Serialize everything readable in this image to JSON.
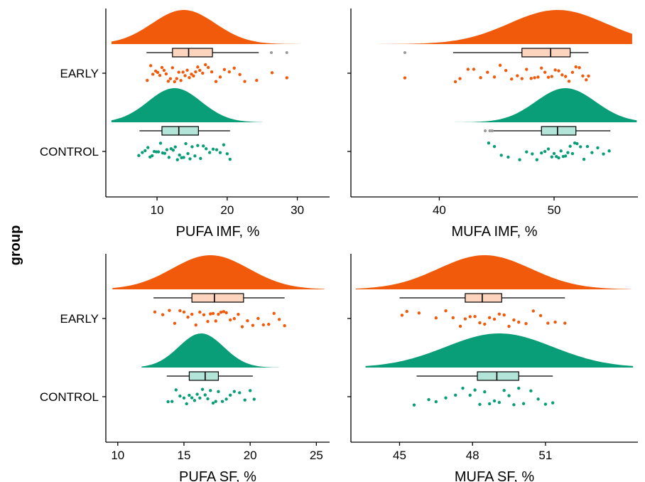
{
  "ylabel": "group",
  "groups": [
    "EARLY",
    "CONTROL"
  ],
  "colors": {
    "EARLY": "#F05A0A",
    "CONTROL": "#0A9E78",
    "EARLY_box": "#FDD5BE",
    "CONTROL_box": "#B2E4D7",
    "outlier": "#999999"
  },
  "chart_data": [
    {
      "type": "raincloud",
      "xlabel": "PUFA IMF, %",
      "xlim": [
        2.7,
        34.6
      ],
      "xticks": [
        10,
        20,
        30
      ],
      "groups": [
        {
          "name": "EARLY",
          "density": {
            "mean": 13.8,
            "sd": 4.5,
            "min": 3.5,
            "max": 33.5
          },
          "box": {
            "whisker_low": 8.5,
            "q1": 12.2,
            "median": 14.5,
            "q3": 17.9,
            "whisker_high": 24.5
          },
          "outliers": [
            26.3,
            28.5
          ],
          "points": [
            8.6,
            9.1,
            9.4,
            9.8,
            10.1,
            10.4,
            10.7,
            11.0,
            11.3,
            11.6,
            11.9,
            12.2,
            12.5,
            12.8,
            13.1,
            13.4,
            13.7,
            14.0,
            14.3,
            14.6,
            14.9,
            15.2,
            15.5,
            15.8,
            16.1,
            16.5,
            16.9,
            17.3,
            17.8,
            18.4,
            19.0,
            19.6,
            20.3,
            21.0,
            21.8,
            22.5,
            24.2,
            26.4,
            28.5
          ]
        },
        {
          "name": "CONTROL",
          "density": {
            "mean": 12.5,
            "sd": 3.8,
            "min": 3.5,
            "max": 25.0
          },
          "box": {
            "whisker_low": 7.5,
            "q1": 10.7,
            "median": 13.1,
            "q3": 15.9,
            "whisker_high": 20.4
          },
          "outliers": [],
          "points": [
            7.4,
            7.9,
            8.3,
            8.7,
            9.0,
            9.3,
            9.6,
            9.9,
            10.2,
            10.5,
            10.8,
            11.1,
            11.4,
            11.7,
            12.0,
            12.3,
            12.6,
            12.9,
            13.2,
            13.5,
            13.8,
            14.1,
            14.4,
            14.7,
            15.0,
            15.4,
            15.8,
            16.2,
            16.6,
            17.0,
            17.5,
            18.0,
            18.5,
            19.0,
            19.5,
            20.0,
            20.4
          ]
        }
      ]
    },
    {
      "type": "raincloud",
      "xlabel": "MUFA IMF, %",
      "xlim": [
        32.3,
        57.3
      ],
      "xticks": [
        40,
        50
      ],
      "groups": [
        {
          "name": "EARLY",
          "density": {
            "mean": 50.3,
            "sd": 4.2,
            "min": 32.8,
            "max": 56.8
          },
          "box": {
            "whisker_low": 41.2,
            "q1": 47.2,
            "median": 49.7,
            "q3": 51.4,
            "whisker_high": 53.0
          },
          "outliers": [
            37.0
          ],
          "points": [
            37.0,
            41.4,
            41.8,
            42.5,
            43.0,
            43.6,
            44.2,
            44.8,
            45.3,
            45.8,
            46.3,
            46.8,
            47.2,
            47.6,
            48.0,
            48.3,
            48.6,
            48.9,
            49.2,
            49.5,
            49.8,
            50.1,
            50.4,
            50.7,
            51.0,
            51.3,
            51.6,
            51.9,
            52.2,
            52.5,
            52.8,
            53.0
          ]
        },
        {
          "name": "CONTROL",
          "density": {
            "mean": 51.0,
            "sd": 2.6,
            "min": 40.2,
            "max": 57.2
          },
          "box": {
            "whisker_low": 44.7,
            "q1": 48.9,
            "median": 50.3,
            "q3": 51.9,
            "whisker_high": 54.9
          },
          "outliers": [
            44.0,
            44.4,
            44.6
          ],
          "points": [
            44.3,
            44.8,
            45.4,
            46.0,
            47.0,
            47.6,
            48.1,
            48.5,
            48.9,
            49.2,
            49.5,
            49.8,
            50.0,
            50.2,
            50.4,
            50.6,
            50.8,
            51.0,
            51.2,
            51.4,
            51.6,
            51.8,
            52.0,
            52.3,
            52.6,
            52.9,
            53.3,
            53.8,
            54.3,
            54.8
          ]
        }
      ]
    },
    {
      "type": "raincloud",
      "xlabel": "PUFA SF, %",
      "xlim": [
        9.1,
        26.0
      ],
      "xticks": [
        10,
        15,
        20,
        25
      ],
      "groups": [
        {
          "name": "EARLY",
          "density": {
            "mean": 17.0,
            "sd": 2.9,
            "min": 9.6,
            "max": 25.6
          },
          "box": {
            "whisker_low": 12.7,
            "q1": 15.6,
            "median": 17.3,
            "q3": 19.5,
            "whisker_high": 22.6
          },
          "outliers": [],
          "points": [
            12.8,
            13.4,
            13.9,
            14.3,
            14.7,
            15.0,
            15.3,
            15.6,
            15.9,
            16.2,
            16.5,
            16.8,
            17.0,
            17.2,
            17.4,
            17.6,
            17.8,
            18.0,
            18.2,
            18.5,
            18.8,
            19.1,
            19.4,
            19.8,
            20.2,
            20.6,
            21.0,
            21.4,
            21.8,
            22.2,
            22.6
          ]
        },
        {
          "name": "CONTROL",
          "density": {
            "mean": 16.3,
            "sd": 1.7,
            "min": 11.8,
            "max": 22.2
          },
          "box": {
            "whisker_low": 13.7,
            "q1": 15.4,
            "median": 16.6,
            "q3": 17.6,
            "whisker_high": 20.2
          },
          "outliers": [],
          "points": [
            13.8,
            14.1,
            14.4,
            14.7,
            15.0,
            15.2,
            15.4,
            15.6,
            15.8,
            16.0,
            16.2,
            16.4,
            16.6,
            16.8,
            17.0,
            17.2,
            17.4,
            17.6,
            17.9,
            18.2,
            18.5,
            18.8,
            19.2,
            19.6,
            20.0,
            20.3
          ]
        }
      ]
    },
    {
      "type": "raincloud",
      "xlabel": "MUFA SF, %",
      "xlim": [
        43.0,
        54.8
      ],
      "xticks": [
        45,
        48,
        51
      ],
      "groups": [
        {
          "name": "EARLY",
          "density": {
            "mean": 48.5,
            "sd": 1.9,
            "min": 43.2,
            "max": 54.5
          },
          "box": {
            "whisker_low": 45.0,
            "q1": 47.7,
            "median": 48.4,
            "q3": 49.2,
            "whisker_high": 51.8
          },
          "outliers": [],
          "points": [
            45.1,
            45.3,
            45.8,
            46.5,
            46.9,
            47.2,
            47.5,
            47.7,
            47.9,
            48.1,
            48.3,
            48.5,
            48.7,
            48.9,
            49.1,
            49.3,
            49.5,
            49.7,
            49.9,
            50.2,
            50.5,
            50.8,
            51.1,
            51.4,
            51.8
          ]
        },
        {
          "name": "CONTROL",
          "density": {
            "mean": 49.1,
            "sd": 2.2,
            "min": 43.6,
            "max": 54.6
          },
          "box": {
            "whisker_low": 45.7,
            "q1": 48.2,
            "median": 49.0,
            "q3": 49.9,
            "whisker_high": 51.3
          },
          "outliers": [],
          "points": [
            45.6,
            46.2,
            46.5,
            46.9,
            47.3,
            47.6,
            47.9,
            48.1,
            48.3,
            48.5,
            48.7,
            48.9,
            49.1,
            49.3,
            49.5,
            49.7,
            49.9,
            50.1,
            50.4,
            50.7,
            51.0,
            51.3
          ]
        }
      ]
    }
  ]
}
